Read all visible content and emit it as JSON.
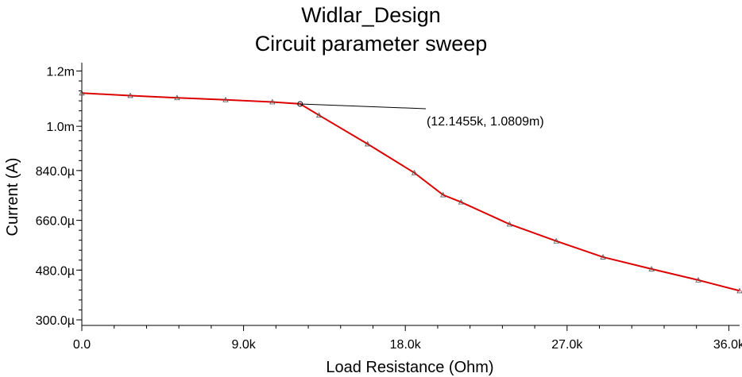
{
  "chart_data": {
    "type": "line",
    "title": "Widlar_Design",
    "subtitle": "Circuit parameter sweep",
    "xlabel": "Load Resistance (Ohm)",
    "ylabel": "Current (A)",
    "xlim": [
      0,
      36600
    ],
    "ylim": [
      280,
      1230
    ],
    "x_ticks": [
      {
        "value": 0,
        "label": "0.0"
      },
      {
        "value": 9000,
        "label": "9.0k"
      },
      {
        "value": 18000,
        "label": "18.0k"
      },
      {
        "value": 27000,
        "label": "27.0k"
      },
      {
        "value": 36000,
        "label": "36.0k"
      }
    ],
    "y_ticks": [
      {
        "value": 300,
        "label": "300.0µ"
      },
      {
        "value": 480,
        "label": "480.0µ"
      },
      {
        "value": 660,
        "label": "660.0µ"
      },
      {
        "value": 840,
        "label": "840.0µ"
      },
      {
        "value": 1000,
        "label": "1.0m"
      },
      {
        "value": 1200,
        "label": "1.2m"
      }
    ],
    "grid": false,
    "series": [
      {
        "color": "#dd0000",
        "x": [
          0,
          2700,
          5300,
          8000,
          10600,
          12145.5,
          13200,
          15900,
          18500,
          20100,
          21100,
          23800,
          26400,
          29000,
          31700,
          34300,
          36600
        ],
        "y": [
          1120,
          1111,
          1103,
          1096,
          1088,
          1080.9,
          1040,
          936,
          832,
          752,
          726,
          646,
          585,
          527,
          484,
          444,
          405
        ]
      }
    ],
    "annotation": {
      "label": "(12.1455k, 1.0809m)",
      "x": 12145.5,
      "y": 1080.9
    }
  }
}
